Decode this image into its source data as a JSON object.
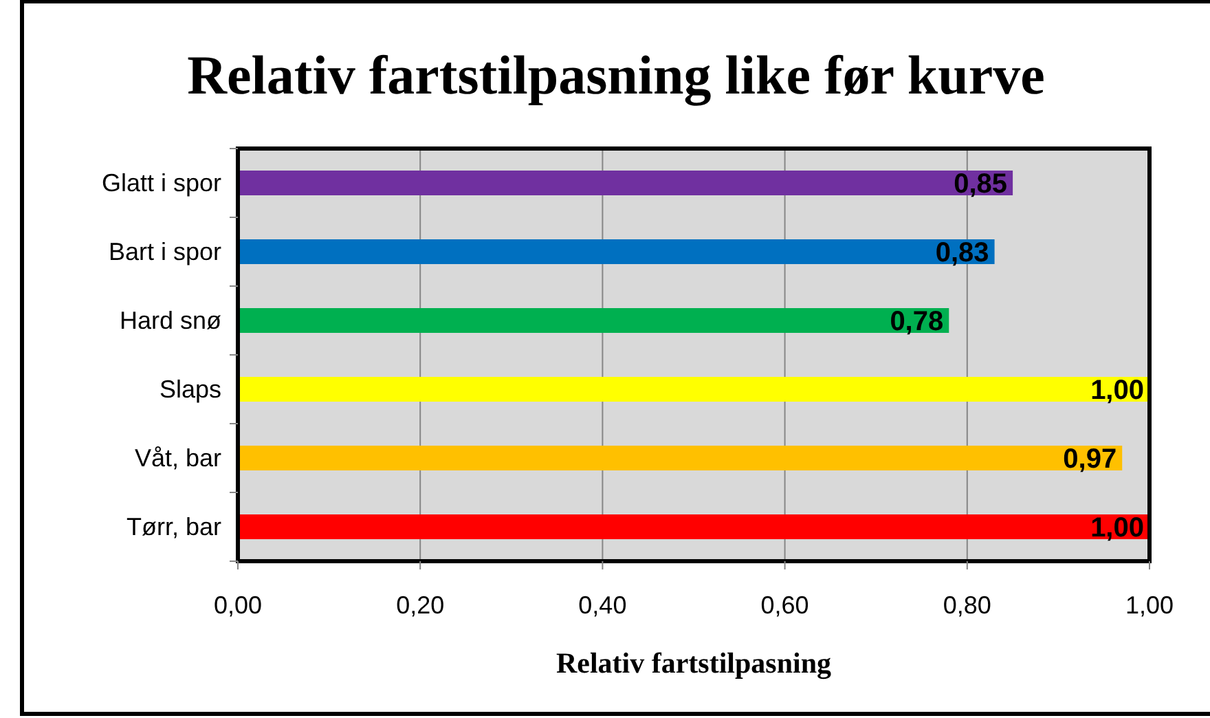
{
  "chart_data": {
    "type": "bar",
    "orientation": "horizontal",
    "title": "Relativ fartstilpasning like før kurve",
    "xlabel": "Relativ fartstilpasning",
    "categories": [
      "Glatt i spor",
      "Bart i spor",
      "Hard snø",
      "Slaps",
      "Våt, bar",
      "Tørr, bar"
    ],
    "values": [
      0.85,
      0.83,
      0.78,
      1.0,
      0.97,
      1.0
    ],
    "colors": [
      "#7030a0",
      "#0070c0",
      "#00b050",
      "#ffff00",
      "#ffc000",
      "#ff0000"
    ],
    "value_labels": [
      "0,85",
      "0,83",
      "0,78",
      "1,00",
      "0,97",
      "1,00"
    ],
    "xlim": [
      0,
      1
    ],
    "xticks": [
      {
        "value": 0,
        "label": "0,00"
      },
      {
        "value": 0.2,
        "label": "0,20"
      },
      {
        "value": 0.4,
        "label": "0,40"
      },
      {
        "value": 0.6,
        "label": "0,60"
      },
      {
        "value": 0.8,
        "label": "0,80"
      },
      {
        "value": 1,
        "label": "1,00"
      }
    ],
    "grid": "x"
  }
}
